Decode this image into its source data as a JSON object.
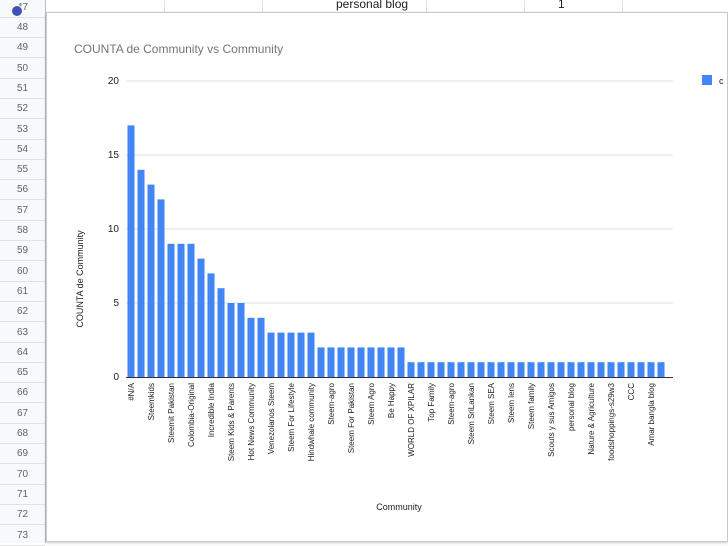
{
  "sheet": {
    "row_numbers": [
      "47",
      "48",
      "49",
      "50",
      "51",
      "52",
      "53",
      "54",
      "55",
      "56",
      "57",
      "58",
      "59",
      "60",
      "61",
      "62",
      "63",
      "64",
      "65",
      "66",
      "67",
      "68",
      "69",
      "70",
      "71",
      "72",
      "73"
    ],
    "top_cell_text": "personal blog",
    "top_cell_value": "1"
  },
  "chart_data": {
    "type": "bar",
    "title": "COUNTA de Community vs Community",
    "xlabel": "Community",
    "ylabel": "COUNTA de Community",
    "ylim": [
      0,
      20
    ],
    "yticks": [
      "0",
      "5",
      "10",
      "15",
      "20"
    ],
    "grid": true,
    "legend_position": "right",
    "legend_visible_text": "c",
    "colors": {
      "bar": "#4285f4",
      "grid": "#e0e0e0",
      "text": "#222222",
      "title": "#757575"
    },
    "categories": [
      "#N/A",
      "",
      "Steemkids",
      "",
      "Steemit Pakistan",
      "",
      "Colombia-Original",
      "",
      "Incredible India",
      "",
      "Steem Kids & Parents",
      "",
      "Hot News Community",
      "",
      "Venezolanos Steem",
      "",
      "Steem For Lifestyle",
      "",
      "Hindwhale community",
      "",
      "Steem-agro",
      "",
      "Steem For Pakistan",
      "",
      "Steem Agro",
      "",
      "Be Happy",
      "",
      "WORLD OF XPILAR",
      "",
      "Top Family",
      "",
      "Steem-agro",
      "",
      "Steem SriLankan",
      "",
      "Steem SEA",
      "",
      "Steem lens",
      "",
      "Steem family",
      "",
      "Scouts y sus Amigos",
      "",
      "personal blog",
      "",
      "Nature & Agriculture",
      "",
      "foodshoppings-s29w3",
      "",
      "CCC",
      "",
      "Amar bangla blog",
      ""
    ],
    "values": [
      17,
      14,
      13,
      12,
      9,
      9,
      9,
      8,
      7,
      6,
      5,
      5,
      4,
      4,
      3,
      3,
      3,
      3,
      3,
      2,
      2,
      2,
      2,
      2,
      2,
      2,
      2,
      2,
      1,
      1,
      1,
      1,
      1,
      1,
      1,
      1,
      1,
      1,
      1,
      1,
      1,
      1,
      1,
      1,
      1,
      1,
      1,
      1,
      1,
      1,
      1,
      1,
      1,
      1
    ]
  }
}
